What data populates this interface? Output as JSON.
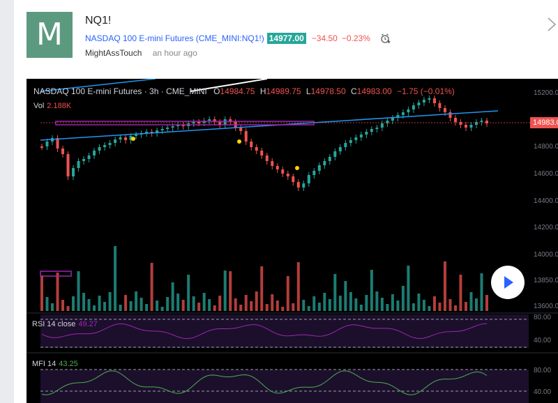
{
  "idea": {
    "avatar_letter": "M",
    "title": "NQ1!",
    "symbol_link": "NASDAQ 100 E-mini Futures (CME_MINI:NQ1!)",
    "price": "14977.00",
    "change": "−34.50",
    "change_pct": "−0.23%",
    "author": "MightAssTouch",
    "time_ago": "an hour ago"
  },
  "chart": {
    "legend_title": "NASDAQ 100 E-mini Futures · 3h · CME_MINI",
    "ohlc": {
      "o_label": "O",
      "o_value": "14984.75",
      "h_label": "H",
      "h_value": "14989.75",
      "l_label": "L",
      "l_value": "14978.50",
      "c_label": "C",
      "c_value": "14983.00",
      "chg": "−1.75 (−0.01%)"
    },
    "vol_label": "Vol",
    "vol_value": "2.188K",
    "rsi_label": "RSI 14 close",
    "rsi_value": "49.27",
    "mfi_label": "MFI 14",
    "mfi_value": "43.25",
    "last_price_tag": "14983.0",
    "price_axis": [
      "15200.00",
      "14800.00",
      "14600.00",
      "14400.00",
      "14200.00",
      "14000.00",
      "13850.00",
      "13600.00"
    ],
    "rsi_axis": [
      "80.00",
      "40.00"
    ],
    "mfi_axis": [
      "80.00",
      "40.00"
    ],
    "colors": {
      "up": "#26a69a",
      "down": "#ef5350",
      "trendline": "#2196f3",
      "rsi": "#9c27b0",
      "mfi": "#4caf50",
      "marker": "#ffd600",
      "background": "#000000"
    }
  }
}
